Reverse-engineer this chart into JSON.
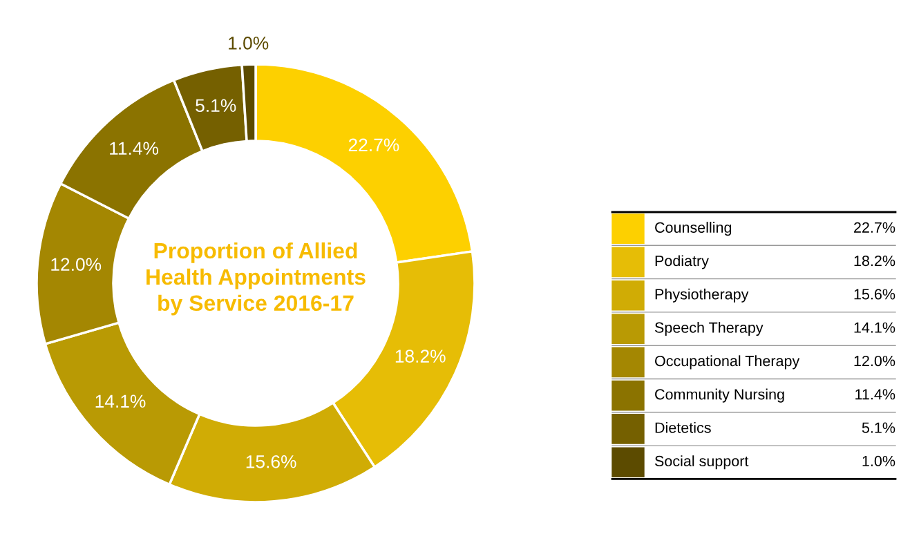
{
  "chart_data": {
    "type": "donut",
    "title": "Proportion of Allied\nHealth Appointments\nby Service 2016-17",
    "categories": [
      "Counselling",
      "Podiatry",
      "Physiotherapy",
      "Speech Therapy",
      "Occupational Therapy",
      "Community Nursing",
      "Dietetics",
      "Social support"
    ],
    "values": [
      22.7,
      18.2,
      15.6,
      14.1,
      12.0,
      11.4,
      5.1,
      1.0
    ],
    "value_labels": [
      "22.7%",
      "18.2%",
      "15.6%",
      "14.1%",
      "12.0%",
      "11.4%",
      "5.1%",
      "1.0%"
    ],
    "colors": [
      "#fdd000",
      "#e6bd06",
      "#d0ac05",
      "#b99a04",
      "#a48702",
      "#8b7300",
      "#756000",
      "#5c4b00"
    ],
    "legend": "right"
  }
}
